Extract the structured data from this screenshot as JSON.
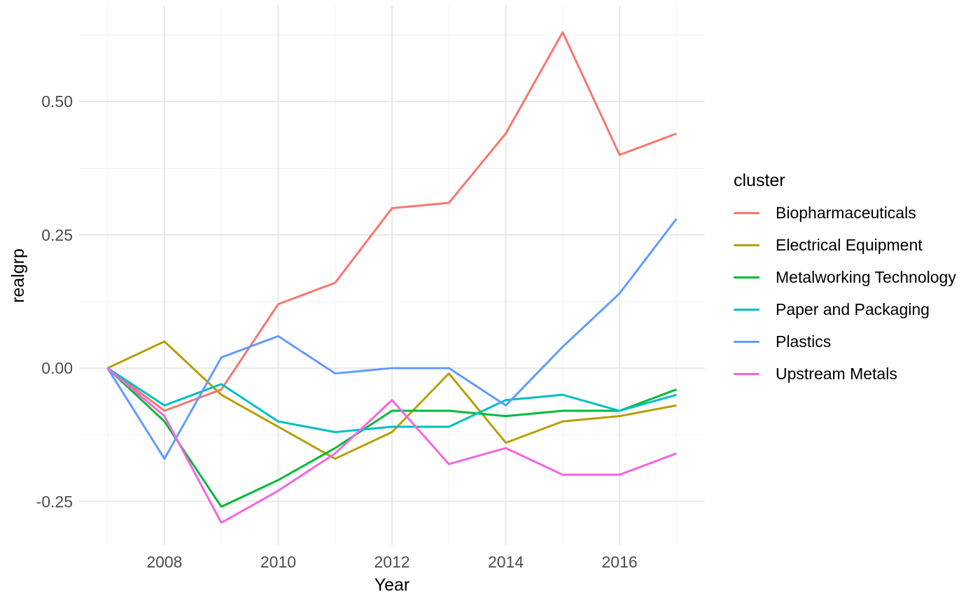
{
  "chart_data": {
    "type": "line",
    "title": "",
    "xlabel": "Year",
    "ylabel": "realgrp",
    "legend_title": "cluster",
    "legend_position": "right",
    "grid": "major+minor",
    "x": [
      2007,
      2008,
      2009,
      2010,
      2011,
      2012,
      2013,
      2014,
      2015,
      2016,
      2017
    ],
    "xlim": [
      2006.5,
      2017.5
    ],
    "ylim": [
      -0.332,
      0.68
    ],
    "x_ticks": [
      2008,
      2010,
      2012,
      2014,
      2016
    ],
    "x_tick_labels": [
      "2008",
      "2010",
      "2012",
      "2014",
      "2016"
    ],
    "x_minor_ticks": [
      2007,
      2009,
      2011,
      2013,
      2015,
      2017
    ],
    "y_ticks": [
      -0.25,
      0.0,
      0.25,
      0.5
    ],
    "y_tick_labels": [
      "-0.25",
      "0.00",
      "0.25",
      "0.50"
    ],
    "y_minor_ticks": [
      -0.125,
      0.125,
      0.375,
      0.625
    ],
    "series": [
      {
        "name": "Biopharmaceuticals",
        "color": "#F8766D",
        "values": [
          0.0,
          -0.08,
          -0.04,
          0.12,
          0.16,
          0.3,
          0.31,
          0.44,
          0.63,
          0.4,
          0.44
        ]
      },
      {
        "name": "Electrical Equipment",
        "color": "#B79F00",
        "values": [
          0.0,
          0.05,
          -0.05,
          -0.11,
          -0.17,
          -0.12,
          -0.01,
          -0.14,
          -0.1,
          -0.09,
          -0.07
        ]
      },
      {
        "name": "Metalworking Technology",
        "color": "#00BA38",
        "values": [
          0.0,
          -0.1,
          -0.26,
          -0.21,
          -0.15,
          -0.08,
          -0.08,
          -0.09,
          -0.08,
          -0.08,
          -0.04
        ]
      },
      {
        "name": "Paper and Packaging",
        "color": "#00BFC4",
        "values": [
          0.0,
          -0.07,
          -0.03,
          -0.1,
          -0.12,
          -0.11,
          -0.11,
          -0.06,
          -0.05,
          -0.08,
          -0.05
        ]
      },
      {
        "name": "Plastics",
        "color": "#619CFF",
        "values": [
          0.0,
          -0.17,
          0.02,
          0.06,
          -0.01,
          0.0,
          0.0,
          -0.07,
          0.04,
          0.14,
          0.28
        ]
      },
      {
        "name": "Upstream Metals",
        "color": "#F564E3",
        "values": [
          0.0,
          -0.09,
          -0.29,
          -0.23,
          -0.16,
          -0.06,
          -0.18,
          -0.15,
          -0.2,
          -0.2,
          -0.16
        ]
      }
    ]
  },
  "colors": {
    "background": "#FFFFFF",
    "grid_major": "#E8E8E8",
    "grid_minor": "#F2F2F2",
    "axis_text": "#4D4D4D",
    "axis_title": "#000000",
    "legend_text": "#000000"
  }
}
